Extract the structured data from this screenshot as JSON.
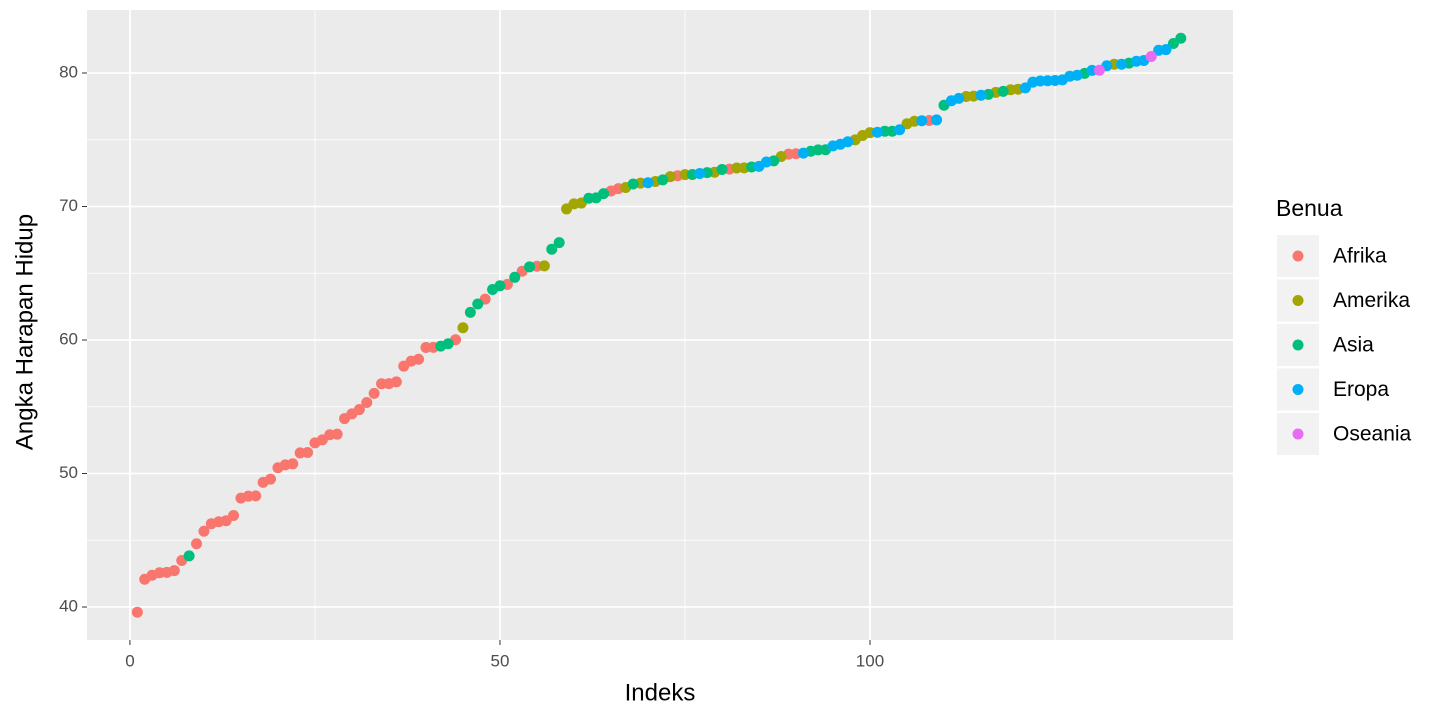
{
  "chart_data": {
    "type": "scatter",
    "x_label": "Indeks",
    "y_label": "Angka Harapan Hidup",
    "legend_title": "Benua",
    "xlim": [
      -5.8,
      149.05
    ],
    "ylim": [
      37.53,
      84.72
    ],
    "xticks": [
      0,
      50,
      100
    ],
    "yticks": [
      40,
      50,
      60,
      70,
      80
    ],
    "grid": true,
    "legend_position": "right",
    "series": [
      {
        "name": "Afrika",
        "color": "#F8766D",
        "x": [
          1,
          2,
          3,
          4,
          5,
          6,
          7,
          9,
          10,
          11,
          12,
          13,
          14,
          15,
          16,
          17,
          18,
          19,
          20,
          21,
          22,
          23,
          24,
          25,
          26,
          27,
          28,
          29,
          30,
          31,
          32,
          33,
          34,
          35,
          36,
          37,
          38,
          39,
          40,
          41,
          44,
          48,
          51,
          53,
          55,
          65,
          66,
          74,
          81,
          89,
          90,
          108
        ],
        "values": [
          39.613,
          42.082,
          42.384,
          42.568,
          42.592,
          42.731,
          43.487,
          44.741,
          45.678,
          46.242,
          46.388,
          46.462,
          46.859,
          48.159,
          48.303,
          48.328,
          49.339,
          49.58,
          50.43,
          50.651,
          50.728,
          51.542,
          51.579,
          52.295,
          52.517,
          52.906,
          52.947,
          54.11,
          54.467,
          54.791,
          55.322,
          56.007,
          56.728,
          56.735,
          56.867,
          58.04,
          58.42,
          58.556,
          59.443,
          59.448,
          60.022,
          63.062,
          64.164,
          65.152,
          65.528,
          71.164,
          71.338,
          72.301,
          72.801,
          73.923,
          73.952,
          76.442
        ]
      },
      {
        "name": "Amerika",
        "color": "#A3A500",
        "x": [
          45,
          56,
          59,
          60,
          61,
          67,
          69,
          71,
          73,
          75,
          79,
          82,
          83,
          88,
          98,
          99,
          100,
          105,
          106,
          113,
          114,
          117,
          119,
          120,
          133
        ],
        "values": [
          60.916,
          65.554,
          69.819,
          70.198,
          70.259,
          71.421,
          71.752,
          71.878,
          72.235,
          72.39,
          72.567,
          72.889,
          72.899,
          73.747,
          74.994,
          75.32,
          75.537,
          76.195,
          76.384,
          78.242,
          78.273,
          78.553,
          78.746,
          78.782,
          80.653
        ]
      },
      {
        "name": "Asia",
        "color": "#00BF7D",
        "x": [
          8,
          42,
          43,
          46,
          47,
          49,
          50,
          52,
          54,
          57,
          58,
          62,
          63,
          64,
          68,
          72,
          76,
          78,
          80,
          84,
          87,
          92,
          93,
          94,
          102,
          103,
          110,
          116,
          118,
          129,
          135,
          141,
          142
        ],
        "values": [
          43.828,
          59.545,
          59.723,
          62.069,
          62.698,
          63.785,
          64.062,
          64.698,
          65.483,
          66.803,
          67.297,
          70.616,
          70.65,
          70.964,
          71.688,
          71.993,
          72.396,
          72.535,
          72.777,
          72.961,
          73.422,
          74.143,
          74.241,
          74.249,
          75.635,
          75.64,
          77.588,
          78.4,
          78.623,
          79.972,
          80.745,
          82.208,
          82.603
        ]
      },
      {
        "name": "Eropa",
        "color": "#00B0F6",
        "x": [
          70,
          77,
          85,
          86,
          91,
          95,
          96,
          97,
          101,
          104,
          107,
          109,
          111,
          112,
          115,
          121,
          122,
          123,
          124,
          125,
          126,
          127,
          128,
          130,
          132,
          134,
          136,
          137,
          139,
          140
        ],
        "values": [
          71.777,
          72.476,
          73.005,
          73.338,
          74.002,
          74.543,
          74.663,
          74.852,
          75.563,
          75.748,
          76.423,
          76.486,
          77.926,
          78.098,
          78.332,
          78.885,
          79.313,
          79.406,
          79.425,
          79.441,
          79.483,
          79.762,
          79.829,
          80.196,
          80.546,
          80.657,
          80.884,
          80.941,
          81.701,
          81.757
        ]
      },
      {
        "name": "Oseania",
        "color": "#E76BF3",
        "x": [
          131,
          138
        ],
        "values": [
          80.204,
          81.235
        ]
      }
    ]
  }
}
